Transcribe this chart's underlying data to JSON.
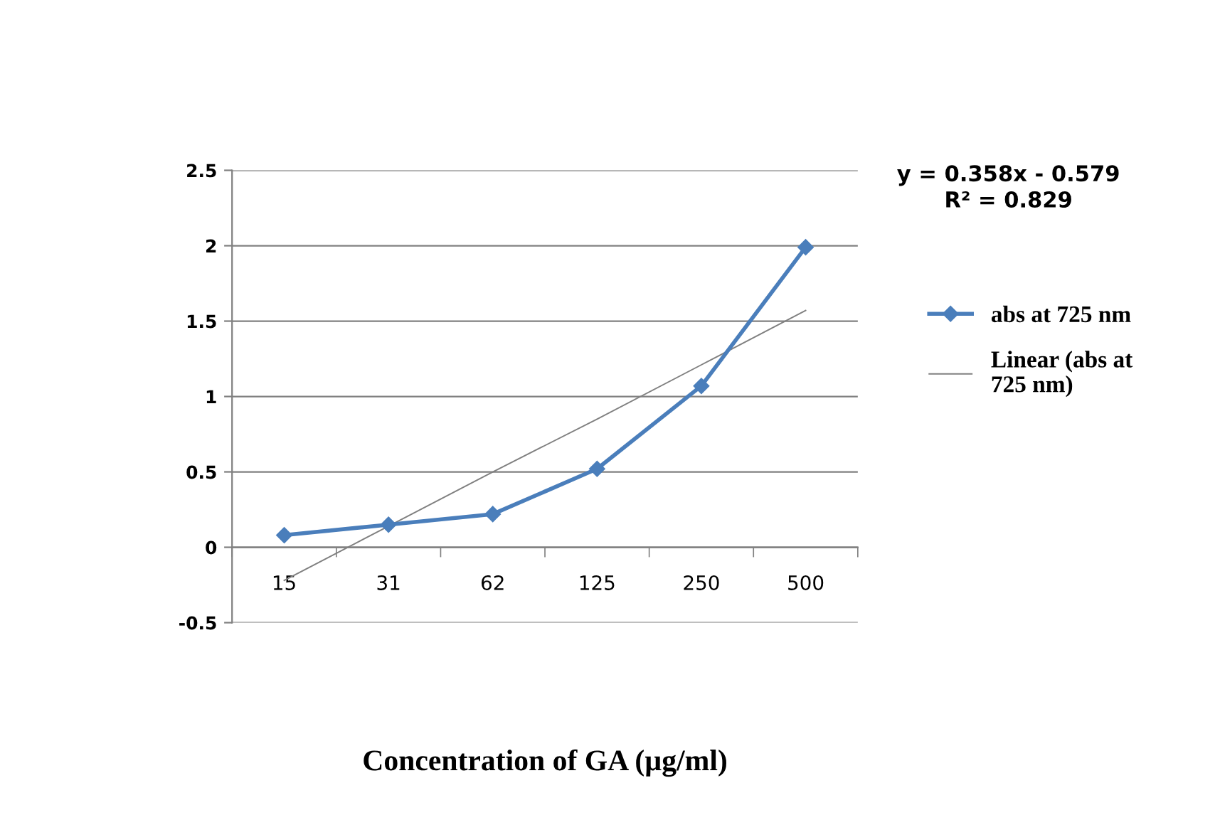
{
  "chart_data": {
    "type": "line",
    "xlabel": "Concentration of GA (µg/ml)",
    "categories": [
      "15",
      "31",
      "62",
      "125",
      "250",
      "500"
    ],
    "series": [
      {
        "name": "abs at 725 nm",
        "color": "#4a7ebb",
        "values": [
          0.08,
          0.15,
          0.22,
          0.52,
          1.07,
          1.99
        ],
        "marker": "diamond"
      },
      {
        "name": "Linear (abs at\n725 nm)",
        "color": "#808080",
        "values": [
          -0.22,
          0.14,
          0.5,
          0.85,
          1.21,
          1.57
        ],
        "marker": "none"
      }
    ],
    "ylim": [
      -0.5,
      2.5
    ],
    "yticks": [
      -0.5,
      0,
      0.5,
      1,
      1.5,
      2,
      2.5
    ],
    "grid": "y",
    "legend": "right",
    "annotations": [
      "y = 0.358x - 0.579\nR² = 0.829"
    ]
  }
}
